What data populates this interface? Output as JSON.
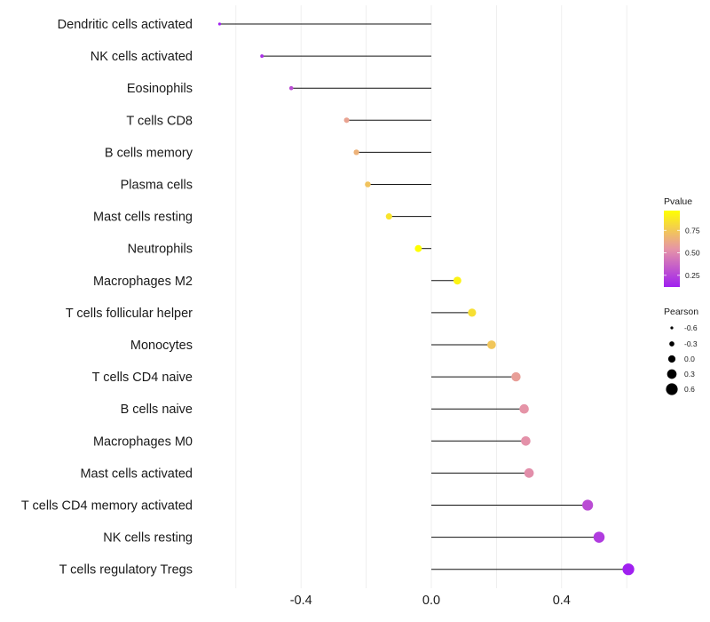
{
  "chart_data": {
    "type": "lollipop",
    "title": "",
    "xlabel": "",
    "ylabel": "",
    "xlim": [
      -0.68,
      0.78
    ],
    "x_ticks": [
      -0.4,
      0.0,
      0.4
    ],
    "x_tick_labels": [
      "-0.4",
      "0.0",
      "0.4"
    ],
    "minor_gridlines": [
      -0.6,
      -0.2,
      0.2,
      0.6
    ],
    "grid": true,
    "points": [
      {
        "category": "Dendritic cells activated",
        "pearson": -0.65,
        "pvalue": 0.12
      },
      {
        "category": "NK cells activated",
        "pearson": -0.52,
        "pvalue": 0.18
      },
      {
        "category": "Eosinophils",
        "pearson": -0.43,
        "pvalue": 0.28
      },
      {
        "category": "T cells CD8",
        "pearson": -0.26,
        "pvalue": 0.6
      },
      {
        "category": "B cells memory",
        "pearson": -0.23,
        "pvalue": 0.66
      },
      {
        "category": "Plasma cells",
        "pearson": -0.195,
        "pvalue": 0.73
      },
      {
        "category": "Mast cells resting",
        "pearson": -0.13,
        "pvalue": 0.86
      },
      {
        "category": "Neutrophils",
        "pearson": -0.04,
        "pvalue": 0.97
      },
      {
        "category": "Macrophages M2",
        "pearson": 0.08,
        "pvalue": 0.92
      },
      {
        "category": "T cells follicular helper",
        "pearson": 0.125,
        "pvalue": 0.84
      },
      {
        "category": "Monocytes",
        "pearson": 0.185,
        "pvalue": 0.74
      },
      {
        "category": "T cells CD4 naive",
        "pearson": 0.26,
        "pvalue": 0.58
      },
      {
        "category": "B cells naive",
        "pearson": 0.285,
        "pvalue": 0.54
      },
      {
        "category": "Macrophages M0",
        "pearson": 0.29,
        "pvalue": 0.53
      },
      {
        "category": "Mast cells activated",
        "pearson": 0.3,
        "pvalue": 0.52
      },
      {
        "category": "T cells CD4 memory activated",
        "pearson": 0.48,
        "pvalue": 0.28
      },
      {
        "category": "NK cells resting",
        "pearson": 0.515,
        "pvalue": 0.22
      },
      {
        "category": "T cells regulatory  Tregs",
        "pearson": 0.605,
        "pvalue": 0.12
      }
    ],
    "legend_color": {
      "title": "Pvalue",
      "range": [
        0.12,
        0.97
      ],
      "ticks": [
        0.25,
        0.5,
        0.75
      ],
      "tick_labels": [
        "0.25",
        "0.50",
        "0.75"
      ],
      "low_color": "#a020f0",
      "mid_color": "#e695a6",
      "high_color": "#ffff00"
    },
    "legend_size": {
      "title": "Pearson",
      "values": [
        -0.6,
        -0.3,
        0.0,
        0.3,
        0.6
      ],
      "labels": [
        "-0.6",
        "-0.3",
        "0.0",
        "0.3",
        "0.6"
      ],
      "color": "#000000"
    },
    "legend_position": "right"
  }
}
